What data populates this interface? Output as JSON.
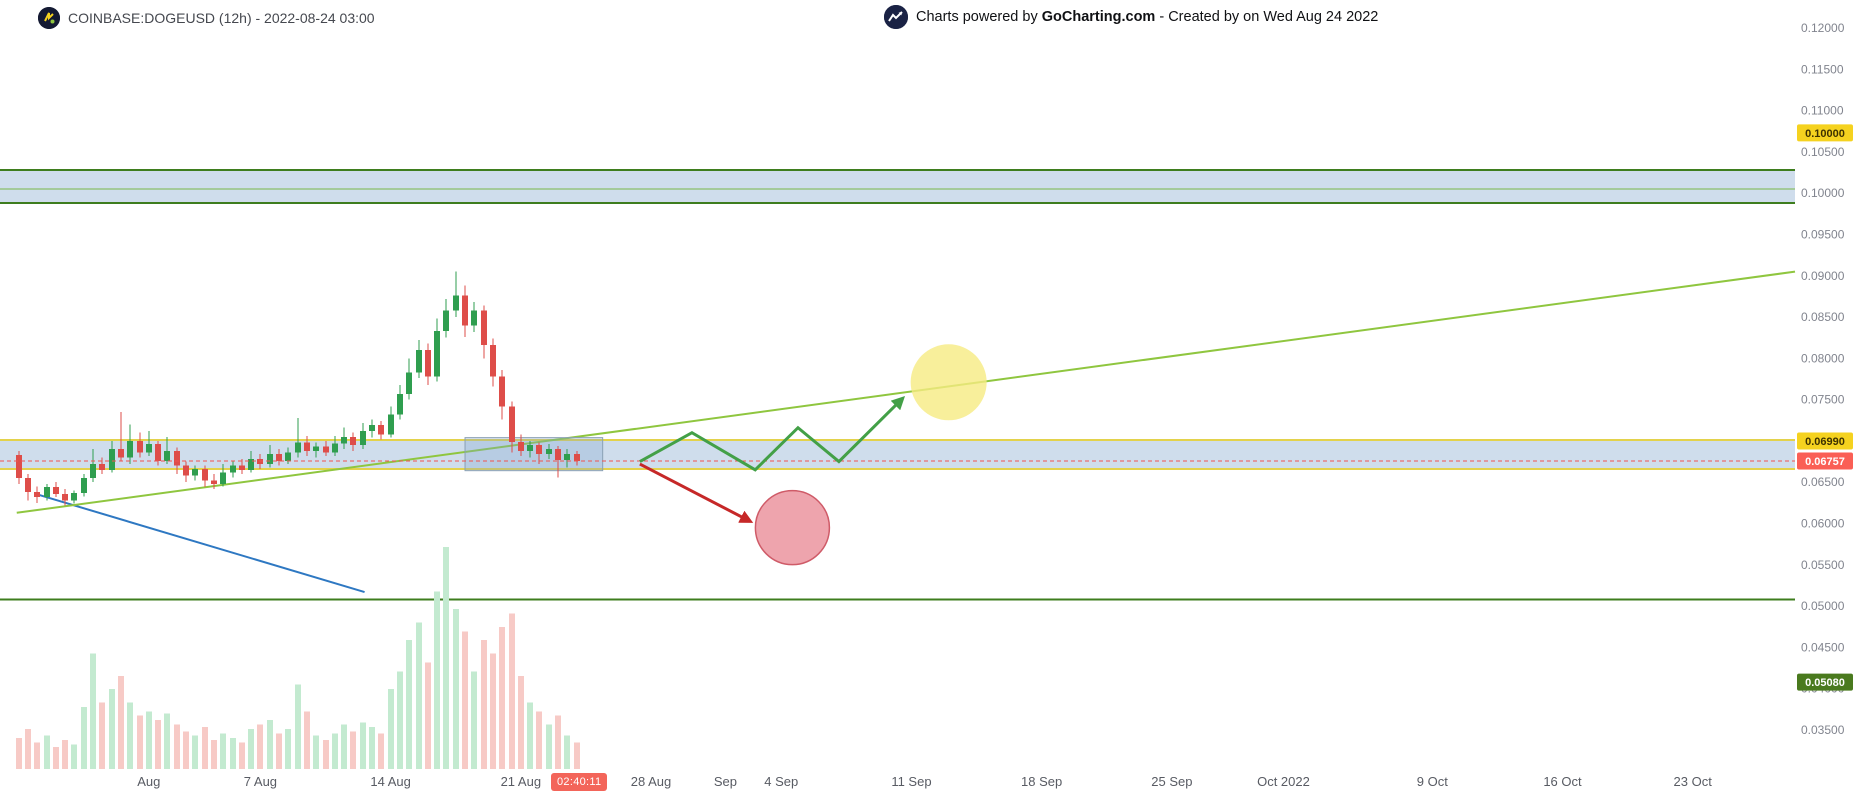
{
  "header": {
    "symbol_text": "COINBASE:DOGEUSD (12h) - 2022-08-24 03:00",
    "powered_prefix": "Charts powered by ",
    "brand": "GoCharting.com",
    "powered_suffix": " - Created by  on Wed Aug 24 2022"
  },
  "countdown": {
    "text": "02:40:11"
  },
  "price_axis": {
    "tick_labels": [
      "0.12000",
      "0.11500",
      "0.11000",
      "0.10500",
      "0.10000",
      "0.09500",
      "0.09000",
      "0.08500",
      "0.08000",
      "0.07500",
      "0.07000",
      "0.06500",
      "0.06000",
      "0.05500",
      "0.05000",
      "0.04500",
      "0.04000",
      "0.03500"
    ],
    "badges": [
      {
        "label": "0.10000",
        "pos_price": 0.1073,
        "bg": "#f5d21f",
        "fg": "#3e3200"
      },
      {
        "label": "0.06990",
        "pos_price": 0.07,
        "bg": "#f5d21f",
        "fg": "#3e3200"
      },
      {
        "label": "0.06757",
        "pos_price": 0.06757,
        "bg": "#fa5f55",
        "fg": "#ffffff"
      },
      {
        "label": "0.05080",
        "pos_price": 0.0408,
        "bg": "#4a7a1e",
        "fg": "#ffffff"
      }
    ]
  },
  "time_axis": {
    "labels": [
      {
        "text": "Aug",
        "day": 8
      },
      {
        "text": "7 Aug",
        "day": 14
      },
      {
        "text": "14 Aug",
        "day": 21
      },
      {
        "text": "21 Aug",
        "day": 28
      },
      {
        "text": "28 Aug",
        "day": 35
      },
      {
        "text": "Sep",
        "day": 39
      },
      {
        "text": "4 Sep",
        "day": 42
      },
      {
        "text": "11 Sep",
        "day": 49
      },
      {
        "text": "18 Sep",
        "day": 56
      },
      {
        "text": "25 Sep",
        "day": 63
      },
      {
        "text": "Oct 2022",
        "day": 69
      },
      {
        "text": "9 Oct",
        "day": 77
      },
      {
        "text": "16 Oct",
        "day": 84
      },
      {
        "text": "23 Oct",
        "day": 91
      }
    ]
  },
  "chart_data": {
    "type": "candlestick",
    "symbol": "COINBASE:DOGEUSD",
    "interval": "12h",
    "last_price": 0.06757,
    "price_domain": [
      0.035,
      0.12
    ],
    "time_domain_days": 96.5,
    "day0": "2022-07-24",
    "volume_max": 100,
    "colors": {
      "up": "#2f9e4f",
      "down": "#de4d49",
      "vol_up": "#c3ead0",
      "vol_down": "#f7cac6"
    },
    "candles": [
      [
        1,
        0.0683,
        0.0688,
        0.0648,
        0.0655,
        14
      ],
      [
        1.5,
        0.0655,
        0.066,
        0.0628,
        0.0638,
        18
      ],
      [
        2,
        0.0638,
        0.0645,
        0.0625,
        0.0632,
        12
      ],
      [
        2.5,
        0.0632,
        0.0648,
        0.0628,
        0.0644,
        15
      ],
      [
        3,
        0.0644,
        0.065,
        0.0632,
        0.0636,
        10
      ],
      [
        3.5,
        0.0636,
        0.0642,
        0.0622,
        0.0628,
        13
      ],
      [
        4,
        0.0628,
        0.064,
        0.0624,
        0.0637,
        11
      ],
      [
        4.5,
        0.0637,
        0.066,
        0.0633,
        0.0655,
        28
      ],
      [
        5,
        0.0655,
        0.069,
        0.065,
        0.0672,
        52
      ],
      [
        5.5,
        0.0672,
        0.068,
        0.066,
        0.0665,
        30
      ],
      [
        6,
        0.0665,
        0.07,
        0.0662,
        0.069,
        36
      ],
      [
        6.5,
        0.069,
        0.0735,
        0.0675,
        0.068,
        42
      ],
      [
        7,
        0.068,
        0.072,
        0.0672,
        0.07,
        30
      ],
      [
        7.5,
        0.07,
        0.071,
        0.068,
        0.0686,
        24
      ],
      [
        8,
        0.0686,
        0.0712,
        0.0682,
        0.0696,
        26
      ],
      [
        8.5,
        0.0696,
        0.07,
        0.067,
        0.0676,
        22
      ],
      [
        9,
        0.0676,
        0.0705,
        0.0672,
        0.0688,
        25
      ],
      [
        9.5,
        0.0688,
        0.0692,
        0.066,
        0.067,
        20
      ],
      [
        10,
        0.067,
        0.0675,
        0.065,
        0.0658,
        17
      ],
      [
        10.5,
        0.0658,
        0.067,
        0.0652,
        0.0666,
        15
      ],
      [
        11,
        0.0666,
        0.067,
        0.0644,
        0.0652,
        19
      ],
      [
        11.5,
        0.0652,
        0.066,
        0.0642,
        0.0648,
        13
      ],
      [
        12,
        0.0648,
        0.0672,
        0.0645,
        0.0662,
        16
      ],
      [
        12.5,
        0.0662,
        0.0676,
        0.0656,
        0.067,
        14
      ],
      [
        13,
        0.067,
        0.0678,
        0.066,
        0.0665,
        12
      ],
      [
        13.5,
        0.0665,
        0.0688,
        0.0662,
        0.0678,
        18
      ],
      [
        14,
        0.0678,
        0.0684,
        0.0666,
        0.0672,
        20
      ],
      [
        14.5,
        0.0672,
        0.0695,
        0.0668,
        0.0684,
        22
      ],
      [
        15,
        0.0684,
        0.069,
        0.067,
        0.0676,
        16
      ],
      [
        15.5,
        0.0676,
        0.0692,
        0.0672,
        0.0686,
        18
      ],
      [
        16,
        0.0686,
        0.0728,
        0.068,
        0.0698,
        38
      ],
      [
        16.5,
        0.0698,
        0.0706,
        0.0682,
        0.0688,
        26
      ],
      [
        17,
        0.0688,
        0.0698,
        0.068,
        0.0693,
        15
      ],
      [
        17.5,
        0.0693,
        0.07,
        0.0682,
        0.0686,
        13
      ],
      [
        18,
        0.0686,
        0.0706,
        0.0682,
        0.0697,
        16
      ],
      [
        18.5,
        0.0697,
        0.0716,
        0.069,
        0.0705,
        20
      ],
      [
        19,
        0.0705,
        0.071,
        0.0688,
        0.0695,
        17
      ],
      [
        19.5,
        0.0695,
        0.0722,
        0.069,
        0.0712,
        21
      ],
      [
        20,
        0.0712,
        0.0726,
        0.0704,
        0.0719,
        19
      ],
      [
        20.5,
        0.0719,
        0.0724,
        0.0702,
        0.0708,
        16
      ],
      [
        21,
        0.0708,
        0.0742,
        0.0704,
        0.0732,
        36
      ],
      [
        21.5,
        0.0732,
        0.0768,
        0.0726,
        0.0757,
        44
      ],
      [
        22,
        0.0757,
        0.08,
        0.075,
        0.0783,
        58
      ],
      [
        22.5,
        0.0783,
        0.0822,
        0.0776,
        0.081,
        66
      ],
      [
        23,
        0.081,
        0.0818,
        0.0768,
        0.0778,
        48
      ],
      [
        23.5,
        0.0778,
        0.0848,
        0.0772,
        0.0833,
        80
      ],
      [
        24,
        0.0833,
        0.0872,
        0.0825,
        0.0858,
        100
      ],
      [
        24.5,
        0.0858,
        0.0905,
        0.085,
        0.0876,
        72
      ],
      [
        25,
        0.0876,
        0.0888,
        0.0826,
        0.084,
        62
      ],
      [
        25.5,
        0.084,
        0.0868,
        0.0832,
        0.0858,
        44
      ],
      [
        26,
        0.0858,
        0.0864,
        0.08,
        0.0816,
        58
      ],
      [
        26.5,
        0.0816,
        0.0824,
        0.0766,
        0.0778,
        52
      ],
      [
        27,
        0.0778,
        0.0786,
        0.0726,
        0.0742,
        64
      ],
      [
        27.5,
        0.0742,
        0.0748,
        0.0686,
        0.0699,
        70
      ],
      [
        28,
        0.0699,
        0.0708,
        0.0682,
        0.0688,
        42
      ],
      [
        28.5,
        0.0688,
        0.07,
        0.068,
        0.0695,
        30
      ],
      [
        29,
        0.0695,
        0.0698,
        0.0672,
        0.0684,
        26
      ],
      [
        29.5,
        0.0684,
        0.0696,
        0.0678,
        0.069,
        20
      ],
      [
        30,
        0.069,
        0.0694,
        0.0656,
        0.0677,
        24
      ],
      [
        30.5,
        0.0677,
        0.069,
        0.0668,
        0.0684,
        15
      ],
      [
        31,
        0.0684,
        0.0688,
        0.067,
        0.0676,
        12
      ]
    ],
    "zones": [
      {
        "name": "upper-supply-zone",
        "top": 0.1028,
        "bottom": 0.0988,
        "fill": "rgba(130,165,205,0.38)",
        "border": "#3e7d1e",
        "border_width": 2,
        "inner_lines": [
          {
            "price": 0.1005,
            "color": "#7ab648"
          }
        ]
      },
      {
        "name": "current-demand-zone",
        "top": 0.0701,
        "bottom": 0.0666,
        "fill": "rgba(130,165,205,0.38)",
        "border": "#e3d24b",
        "border_width": 2,
        "inner_lines": []
      }
    ],
    "hlines": [
      {
        "name": "support-line",
        "price": 0.0508,
        "color": "#3e7d1e",
        "width": 2
      }
    ],
    "current_price_line": {
      "price": 0.06757,
      "color": "#f0544f"
    },
    "trendlines": [
      {
        "name": "descending-trendline",
        "t1": 1.9,
        "p1": 0.0636,
        "t2": 19.6,
        "p2": 0.0517,
        "color": "#2e78c2",
        "width": 2
      },
      {
        "name": "ascending-trendline",
        "t1": 0.9,
        "p1": 0.0613,
        "t2": 96.5,
        "p2": 0.0905,
        "color": "#8fc63f",
        "width": 2
      }
    ],
    "box": {
      "name": "consolidation-box",
      "t1": 25,
      "t2": 32.4,
      "top": 0.0704,
      "bottom": 0.0664,
      "fill": "rgba(130,165,205,0.30)",
      "border": "#8aa0b4"
    },
    "circles": [
      {
        "name": "target-circle",
        "t": 51,
        "price": 0.0771,
        "r": 38,
        "fill": "rgba(246,235,130,0.80)",
        "stroke": "none"
      },
      {
        "name": "risk-circle",
        "t": 42.6,
        "price": 0.0595,
        "r": 37,
        "fill": "rgba(236,154,164,0.90)",
        "stroke": "#cf5b68"
      }
    ],
    "zigzag_arrow": {
      "color": "#43a047",
      "width": 3,
      "points": [
        [
          34.4,
          0.0675
        ],
        [
          37.2,
          0.071
        ],
        [
          40.6,
          0.0665
        ],
        [
          42.9,
          0.0716
        ],
        [
          45.1,
          0.0675
        ],
        [
          48.5,
          0.0751
        ]
      ]
    },
    "down_arrow": {
      "color": "#c62828",
      "width": 3,
      "from": [
        34.4,
        0.0672
      ],
      "to": [
        40.3,
        0.0603
      ]
    }
  }
}
